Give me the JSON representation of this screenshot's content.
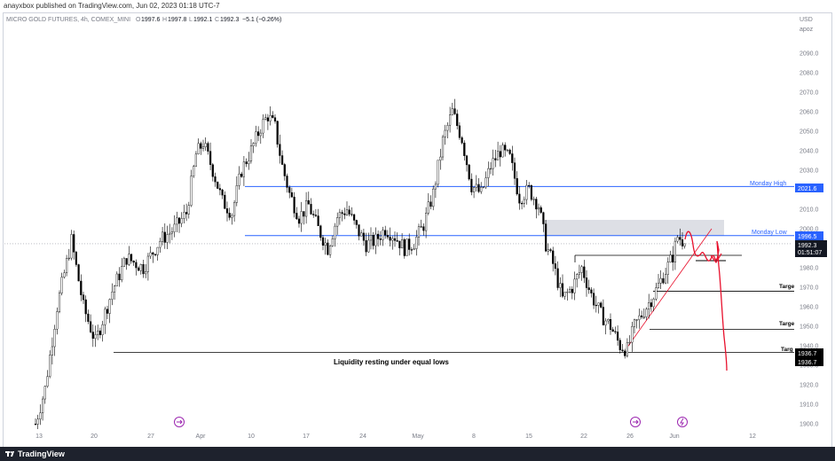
{
  "header": {
    "published": "anayxbox published on TradingView.com, Jun 02, 2023 01:18 UTC-7"
  },
  "legend": {
    "symbol": "MICRO GOLD FUTURES, 4h, COMEX_MINI",
    "o_label": "O",
    "o_value": "1997.6",
    "h_label": "H",
    "h_value": "1997.8",
    "l_label": "L",
    "l_value": "1992.1",
    "c_label": "C",
    "c_value": "1992.3",
    "change": "−5.1 (−0.26%)"
  },
  "axis": {
    "currency": "USD",
    "extra": "apoz"
  },
  "footer": {
    "brand": "TradingView"
  },
  "annotations": {
    "monday_high": "Monday High",
    "monday_low": "Monday Low",
    "liquidity": "Liquidity resting under equal lows",
    "target_1": "Targe",
    "target_2": "Targe",
    "target_3": "Targ"
  },
  "price_labels": {
    "monday_high": "2021.6",
    "monday_low": "1996.5",
    "last_price": "1992.3",
    "countdown": "01:51:07",
    "low_a": "1936.7",
    "low_b": "1936.7"
  },
  "colors": {
    "blue": "#2962ff",
    "red": "#e8112d",
    "black": "#000000",
    "label_dark": "#131722",
    "zone": "#d1d4dc",
    "event_icon": "#9c27b0"
  },
  "chart_data": {
    "type": "candlestick",
    "title": "MICRO GOLD FUTURES, 4h, COMEX_MINI",
    "ylim": [
      1896,
      2103
    ],
    "y_ticks": [
      1900,
      1910,
      1920,
      1930,
      1940,
      1950,
      1960,
      1970,
      1980,
      1990,
      2000,
      2010,
      2020,
      2030,
      2040,
      2050,
      2060,
      2070,
      2080,
      2090
    ],
    "x_ticks": [
      "13",
      "20",
      "27",
      "Apr",
      "10",
      "17",
      "24",
      "May",
      "8",
      "15",
      "22",
      "26",
      "Jun",
      "12"
    ],
    "levels": [
      {
        "name": "Monday High",
        "value": 2021.6
      },
      {
        "name": "Monday Low",
        "value": 1996.5
      },
      {
        "name": "Equal lows",
        "value": 1936.7
      }
    ],
    "targets": [
      1968,
      1948.5,
      1936.7
    ],
    "last_price": 1992.3,
    "price_path": [
      [
        0,
        1900
      ],
      [
        4,
        1918
      ],
      [
        9,
        1960
      ],
      [
        15,
        1994
      ],
      [
        20,
        1960
      ],
      [
        25,
        1942
      ],
      [
        32,
        1968
      ],
      [
        38,
        1985
      ],
      [
        45,
        1980
      ],
      [
        52,
        1994
      ],
      [
        58,
        2000
      ],
      [
        63,
        2008
      ],
      [
        67,
        2038
      ],
      [
        70,
        2044
      ],
      [
        74,
        2030
      ],
      [
        78,
        2014
      ],
      [
        82,
        2008
      ],
      [
        86,
        2030
      ],
      [
        90,
        2040
      ],
      [
        94,
        2052
      ],
      [
        97,
        2058
      ],
      [
        100,
        2052
      ],
      [
        103,
        2032
      ],
      [
        106,
        2018
      ],
      [
        110,
        2006
      ],
      [
        114,
        2012
      ],
      [
        118,
        2000
      ],
      [
        122,
        1990
      ],
      [
        126,
        2006
      ],
      [
        130,
        2010
      ],
      [
        134,
        2000
      ],
      [
        138,
        1992
      ],
      [
        142,
        1994
      ],
      [
        146,
        2000
      ],
      [
        150,
        1996
      ],
      [
        154,
        1990
      ],
      [
        158,
        1993
      ],
      [
        162,
        2002
      ],
      [
        166,
        2018
      ],
      [
        170,
        2045
      ],
      [
        174,
        2060
      ],
      [
        178,
        2046
      ],
      [
        182,
        2022
      ],
      [
        186,
        2018
      ],
      [
        190,
        2032
      ],
      [
        194,
        2040
      ],
      [
        198,
        2036
      ],
      [
        202,
        2016
      ],
      [
        206,
        2020
      ],
      [
        210,
        2012
      ],
      [
        213,
        1992
      ],
      [
        216,
        1982
      ],
      [
        220,
        1964
      ],
      [
        224,
        1970
      ],
      [
        228,
        1980
      ],
      [
        232,
        1966
      ],
      [
        236,
        1956
      ],
      [
        240,
        1950
      ],
      [
        244,
        1940
      ],
      [
        247,
        1938
      ],
      [
        250,
        1950
      ],
      [
        254,
        1958
      ],
      [
        258,
        1966
      ],
      [
        262,
        1976
      ],
      [
        266,
        1986
      ],
      [
        268,
        1996
      ],
      [
        270,
        1994
      ],
      [
        271,
        1992.3
      ]
    ]
  }
}
